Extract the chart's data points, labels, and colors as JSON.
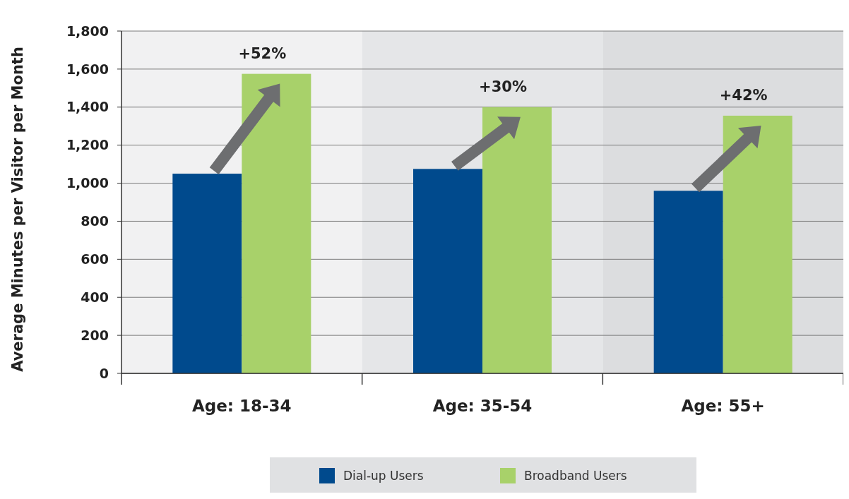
{
  "chart_data": {
    "type": "bar",
    "ylabel": "Average Minutes per Visitor per Month",
    "categories": [
      "Age: 18-34",
      "Age: 35-54",
      "Age: 55+"
    ],
    "series": [
      {
        "name": "Dial-up Users",
        "color": "#004a8d",
        "values": [
          1050,
          1075,
          960
        ]
      },
      {
        "name": "Broadband Users",
        "color": "#a8d16a",
        "values": [
          1575,
          1400,
          1355
        ]
      }
    ],
    "annotations": [
      {
        "text": "+52%",
        "x": "Age: 18-34",
        "y": 1575
      },
      {
        "text": "+30%",
        "x": "Age: 35-54",
        "y": 1400
      },
      {
        "text": "+42%",
        "x": "Age: 55+",
        "y": 1355
      }
    ],
    "ylim": [
      0,
      1800
    ],
    "yticks": [
      {
        "value": 0,
        "label": "0"
      },
      {
        "value": 200,
        "label": "200"
      },
      {
        "value": 400,
        "label": "400"
      },
      {
        "value": 600,
        "label": "600"
      },
      {
        "value": 800,
        "label": "800"
      },
      {
        "value": 1000,
        "label": "1,000"
      },
      {
        "value": 1200,
        "label": "1,200"
      },
      {
        "value": 1400,
        "label": "1,400"
      },
      {
        "value": 1600,
        "label": "1,600"
      },
      {
        "value": 1800,
        "label": "1,800"
      }
    ],
    "bands": [
      {
        "axis": "x",
        "from": "Age: 18-34",
        "to": "Age: 18-34",
        "color": "#f1f1f2"
      },
      {
        "axis": "x",
        "from": "Age: 35-54",
        "to": "Age: 35-54",
        "color": "#e5e6e8"
      },
      {
        "axis": "x",
        "from": "Age: 55+",
        "to": "Age: 55+",
        "color": "#dcdddf"
      }
    ],
    "grid": "y",
    "legend": "bottom"
  }
}
